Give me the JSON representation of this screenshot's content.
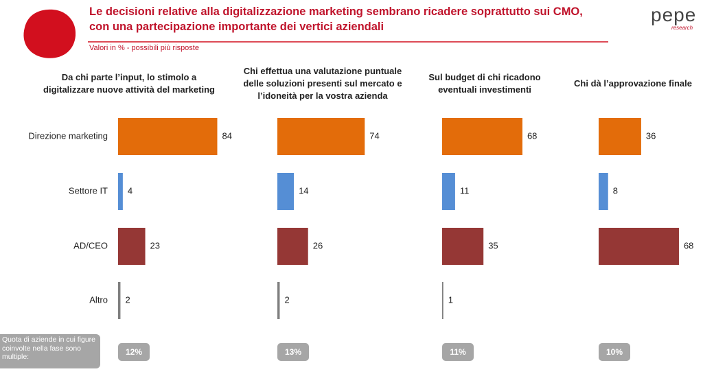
{
  "header": {
    "title": "Le decisioni relative alla digitalizzazione marketing sembrano ricadere soprattutto sui CMO, con una partecipazione importante dei vertici aziendali",
    "subtitle": "Valori in % - possibili più risposte",
    "logo": "pepe",
    "logo_sub": "research"
  },
  "chart_data": [
    {
      "type": "bar",
      "orientation": "horizontal",
      "title": "Da chi parte l’input, lo stimolo a digitalizzare nuove attività del marketing",
      "categories": [
        "Direzione marketing",
        "Settore IT",
        "AD/CEO",
        "Altro"
      ],
      "values": [
        84,
        4,
        23,
        2
      ],
      "colors": [
        "#e36c0a",
        "#558ed5",
        "#953735",
        "#7f7f7f"
      ]
    },
    {
      "type": "bar",
      "orientation": "horizontal",
      "title": "Chi effettua una valutazione puntuale delle soluzioni presenti sul mercato e l’idoneità per la vostra azienda",
      "values": [
        74,
        14,
        26,
        2
      ],
      "colors": [
        "#e36c0a",
        "#558ed5",
        "#953735",
        "#7f7f7f"
      ]
    },
    {
      "type": "bar",
      "orientation": "horizontal",
      "title": "Sul budget di chi ricadono eventuali investimenti",
      "values": [
        68,
        11,
        35,
        1
      ],
      "colors": [
        "#e36c0a",
        "#558ed5",
        "#953735",
        "#7f7f7f"
      ]
    },
    {
      "type": "bar",
      "orientation": "horizontal",
      "title": "Chi dà l’approvazione finale",
      "values": [
        36,
        8,
        68,
        null
      ],
      "colors": [
        "#e36c0a",
        "#558ed5",
        "#953735",
        "#7f7f7f"
      ]
    }
  ],
  "footer": {
    "note": "Quota di aziende in cui figure coinvolte nella fase sono multiple:",
    "shares": [
      "12%",
      "13%",
      "11%",
      "10%"
    ]
  }
}
